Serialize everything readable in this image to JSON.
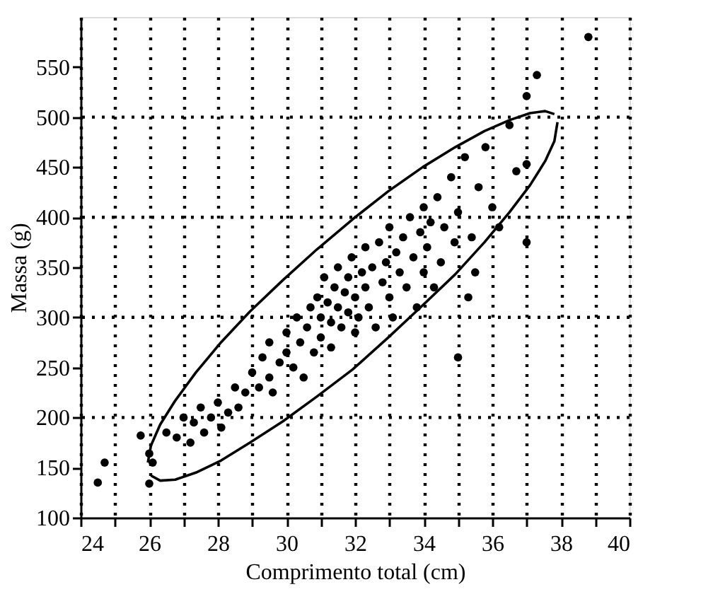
{
  "chart_data": {
    "type": "scatter",
    "xlabel": "Comprimento total (cm)",
    "ylabel": "Massa (g)",
    "xlim": [
      24,
      40
    ],
    "ylim": [
      100,
      600
    ],
    "xticks": [
      24,
      {
        "value": 25,
        "label": null
      },
      26,
      {
        "value": 27,
        "label": null
      },
      28,
      {
        "value": 29,
        "label": null
      },
      30,
      {
        "value": 31,
        "label": null
      },
      32,
      {
        "value": 33,
        "label": null
      },
      34,
      {
        "value": 35,
        "label": null
      },
      36,
      {
        "value": 37,
        "label": null
      },
      38,
      {
        "value": 39,
        "label": null
      },
      40
    ],
    "yticks": [
      100,
      150,
      200,
      250,
      300,
      350,
      400,
      450,
      500,
      550
    ],
    "grid": "x",
    "marker": "circle",
    "ref_lines": [
      {
        "axis": "y",
        "value": 200,
        "line_style": "dotted",
        "color": "#000000"
      },
      {
        "axis": "y",
        "value": 300,
        "line_style": "dotted",
        "color": "#000000"
      },
      {
        "axis": "y",
        "value": 400,
        "line_style": "dotted",
        "color": "#000000"
      },
      {
        "axis": "y",
        "value": 500,
        "line_style": "dotted",
        "color": "#000000"
      }
    ],
    "series": [
      {
        "color": "#000000",
        "x": [
          24.5,
          24.7,
          25.75,
          26.0,
          26.1,
          26.0,
          26.5,
          26.8,
          27.0,
          27.2,
          27.3,
          27.5,
          27.6,
          27.8,
          28.0,
          28.1,
          28.3,
          28.5,
          28.6,
          28.8,
          29.0,
          29.2,
          29.3,
          29.5,
          29.5,
          29.6,
          29.8,
          30.0,
          30.0,
          30.2,
          30.3,
          30.4,
          30.5,
          30.6,
          30.7,
          30.8,
          30.9,
          31.0,
          31.0,
          31.1,
          31.2,
          31.3,
          31.3,
          31.4,
          31.5,
          31.5,
          31.6,
          31.7,
          31.8,
          31.8,
          31.9,
          32.0,
          32.0,
          32.1,
          32.2,
          32.3,
          32.3,
          32.4,
          32.5,
          32.6,
          32.7,
          32.8,
          32.9,
          33.0,
          33.0,
          33.1,
          33.2,
          33.3,
          33.4,
          33.5,
          33.6,
          33.7,
          33.8,
          33.9,
          34.0,
          34.0,
          34.1,
          34.2,
          34.3,
          34.4,
          34.5,
          34.6,
          34.8,
          34.9,
          35.0,
          35.2,
          35.4,
          35.5,
          35.6,
          35.8,
          36.0,
          36.2,
          35.0,
          35.3,
          36.5,
          36.7,
          37.0,
          37.0,
          37.0,
          37.3,
          38.8
        ],
        "values": [
          135,
          155,
          182,
          164,
          155,
          134,
          185,
          180,
          200,
          175,
          195,
          210,
          185,
          200,
          215,
          190,
          205,
          230,
          210,
          225,
          245,
          230,
          260,
          275,
          240,
          225,
          255,
          285,
          265,
          250,
          300,
          275,
          240,
          290,
          310,
          265,
          320,
          300,
          280,
          340,
          315,
          295,
          270,
          330,
          310,
          350,
          290,
          325,
          305,
          340,
          360,
          320,
          285,
          300,
          345,
          330,
          370,
          310,
          350,
          290,
          375,
          335,
          355,
          320,
          390,
          300,
          365,
          345,
          380,
          330,
          400,
          360,
          310,
          385,
          345,
          410,
          370,
          395,
          330,
          420,
          355,
          390,
          440,
          375,
          405,
          460,
          380,
          345,
          430,
          470,
          410,
          390,
          260,
          320,
          492,
          446,
          453,
          375,
          521,
          542,
          580
        ]
      },
      {
        "type": "line",
        "color": "#000000",
        "marker": "none",
        "line_style": "solid",
        "x": [
          25.96,
          26.05,
          26.32,
          26.76,
          27.36,
          28.09,
          28.94,
          29.89,
          30.89,
          31.93,
          32.97,
          33.97,
          34.92,
          35.77,
          36.5,
          37.1,
          37.54,
          37.81
        ],
        "values": [
          155,
          172,
          193,
          217,
          245,
          275,
          306,
          337,
          368,
          398,
          426,
          450,
          470,
          486,
          497,
          504,
          506,
          503
        ]
      },
      {
        "type": "line",
        "color": "#000000",
        "marker": "none",
        "line_style": "solid",
        "x": [
          26.05,
          26.32,
          26.76,
          27.36,
          28.09,
          28.94,
          29.89,
          30.89,
          31.93,
          32.97,
          33.97,
          34.92,
          35.77,
          36.5,
          37.1,
          37.54,
          37.81,
          37.9
        ],
        "values": [
          142,
          137,
          138,
          145,
          157,
          175,
          196,
          221,
          248,
          280,
          312,
          343,
          375,
          405,
          432,
          456,
          476,
          495
        ]
      }
    ]
  }
}
